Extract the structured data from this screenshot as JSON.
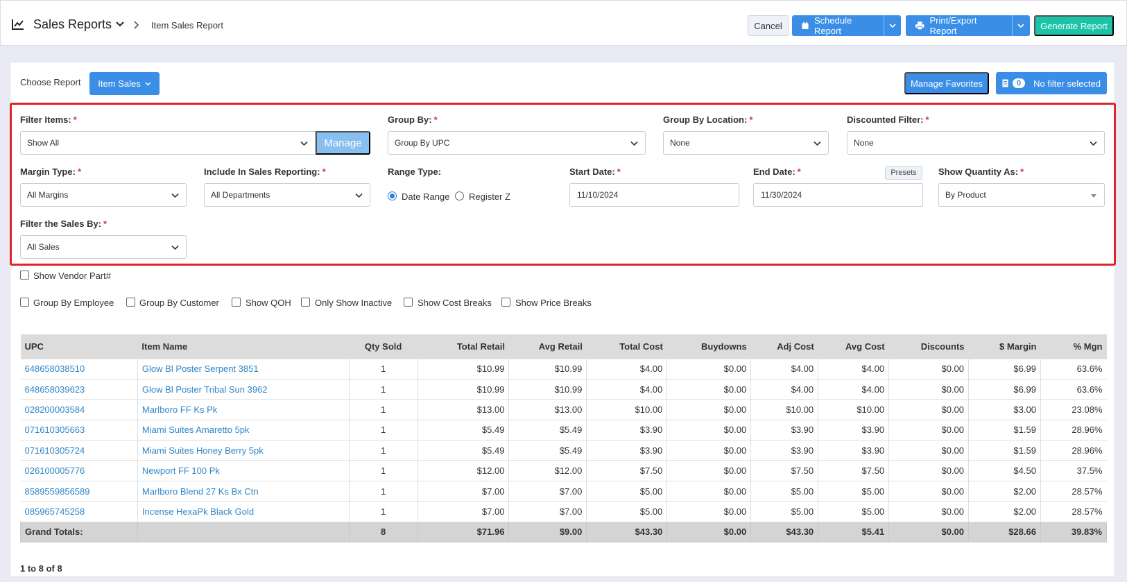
{
  "header": {
    "app_title": "Sales Reports",
    "breadcrumb": "Item Sales Report",
    "cancel_label": "Cancel",
    "schedule_label": "Schedule Report",
    "print_label": "Print/Export Report",
    "generate_label": "Generate Report"
  },
  "report_bar": {
    "choose_label": "Choose Report",
    "report_button": "Item Sales",
    "favorites_label": "Manage Favorites",
    "filter_count": "0",
    "filter_status": "No filter selected"
  },
  "filters": {
    "filter_items": {
      "label": "Filter Items:",
      "value": "Show All",
      "manage_label": "Manage"
    },
    "group_by": {
      "label": "Group By:",
      "value": "Group By UPC"
    },
    "group_by_location": {
      "label": "Group By Location:",
      "value": "None"
    },
    "discounted_filter": {
      "label": "Discounted Filter:",
      "value": "None"
    },
    "margin_type": {
      "label": "Margin Type:",
      "value": "All Margins"
    },
    "include_in_sales": {
      "label": "Include In Sales Reporting:",
      "value": "All Departments"
    },
    "range_type": {
      "label": "Range Type:",
      "option_date": "Date Range",
      "option_register": "Register Z",
      "selected": "Date Range"
    },
    "start_date": {
      "label": "Start Date:",
      "value": "11/10/2024"
    },
    "end_date": {
      "label": "End Date:",
      "value": "11/30/2024",
      "presets_label": "Presets"
    },
    "show_quantity": {
      "label": "Show Quantity As:",
      "value": "By Product"
    },
    "filter_sales_by": {
      "label": "Filter the Sales By:",
      "value": "All Sales"
    },
    "required_mark": "*"
  },
  "options": {
    "vendor_part": "Show Vendor Part#",
    "group_employee": "Group By Employee",
    "group_customer": "Group By Customer",
    "show_qoh": "Show QOH",
    "only_inactive": "Only Show Inactive",
    "cost_breaks": "Show Cost Breaks",
    "price_breaks": "Show Price Breaks"
  },
  "table": {
    "columns": [
      "UPC",
      "Item Name",
      "Qty Sold",
      "Total Retail",
      "Avg Retail",
      "Total Cost",
      "Buydowns",
      "Adj Cost",
      "Avg Cost",
      "Discounts",
      "$ Margin",
      "% Mgn"
    ],
    "rows": [
      [
        "648658038510",
        "Glow Bl Poster Serpent 3851",
        "1",
        "$10.99",
        "$10.99",
        "$4.00",
        "$0.00",
        "$4.00",
        "$4.00",
        "$0.00",
        "$6.99",
        "63.6%"
      ],
      [
        "648658039623",
        "Glow Bl Poster Tribal Sun 3962",
        "1",
        "$10.99",
        "$10.99",
        "$4.00",
        "$0.00",
        "$4.00",
        "$4.00",
        "$0.00",
        "$6.99",
        "63.6%"
      ],
      [
        "028200003584",
        "Marlboro FF Ks Pk",
        "1",
        "$13.00",
        "$13.00",
        "$10.00",
        "$0.00",
        "$10.00",
        "$10.00",
        "$0.00",
        "$3.00",
        "23.08%"
      ],
      [
        "071610305663",
        "Miami Suites Amaretto 5pk",
        "1",
        "$5.49",
        "$5.49",
        "$3.90",
        "$0.00",
        "$3.90",
        "$3.90",
        "$0.00",
        "$1.59",
        "28.96%"
      ],
      [
        "071610305724",
        "Miami Suites Honey Berry 5pk",
        "1",
        "$5.49",
        "$5.49",
        "$3.90",
        "$0.00",
        "$3.90",
        "$3.90",
        "$0.00",
        "$1.59",
        "28.96%"
      ],
      [
        "026100005776",
        "Newport FF 100 Pk",
        "1",
        "$12.00",
        "$12.00",
        "$7.50",
        "$0.00",
        "$7.50",
        "$7.50",
        "$0.00",
        "$4.50",
        "37.5%"
      ],
      [
        "8589559856589",
        "Marlboro Blend 27 Ks Bx Ctn",
        "1",
        "$7.00",
        "$7.00",
        "$5.00",
        "$0.00",
        "$5.00",
        "$5.00",
        "$0.00",
        "$2.00",
        "28.57%"
      ],
      [
        "085965745258",
        "Incense HexaPk Black Gold",
        "1",
        "$7.00",
        "$7.00",
        "$5.00",
        "$0.00",
        "$5.00",
        "$5.00",
        "$0.00",
        "$2.00",
        "28.57%"
      ]
    ],
    "totals": [
      "Grand Totals:",
      "",
      "8",
      "$71.96",
      "$9.00",
      "$43.30",
      "$0.00",
      "$43.30",
      "$5.41",
      "$0.00",
      "$28.66",
      "39.83%"
    ]
  },
  "pager": "1 to 8 of 8"
}
